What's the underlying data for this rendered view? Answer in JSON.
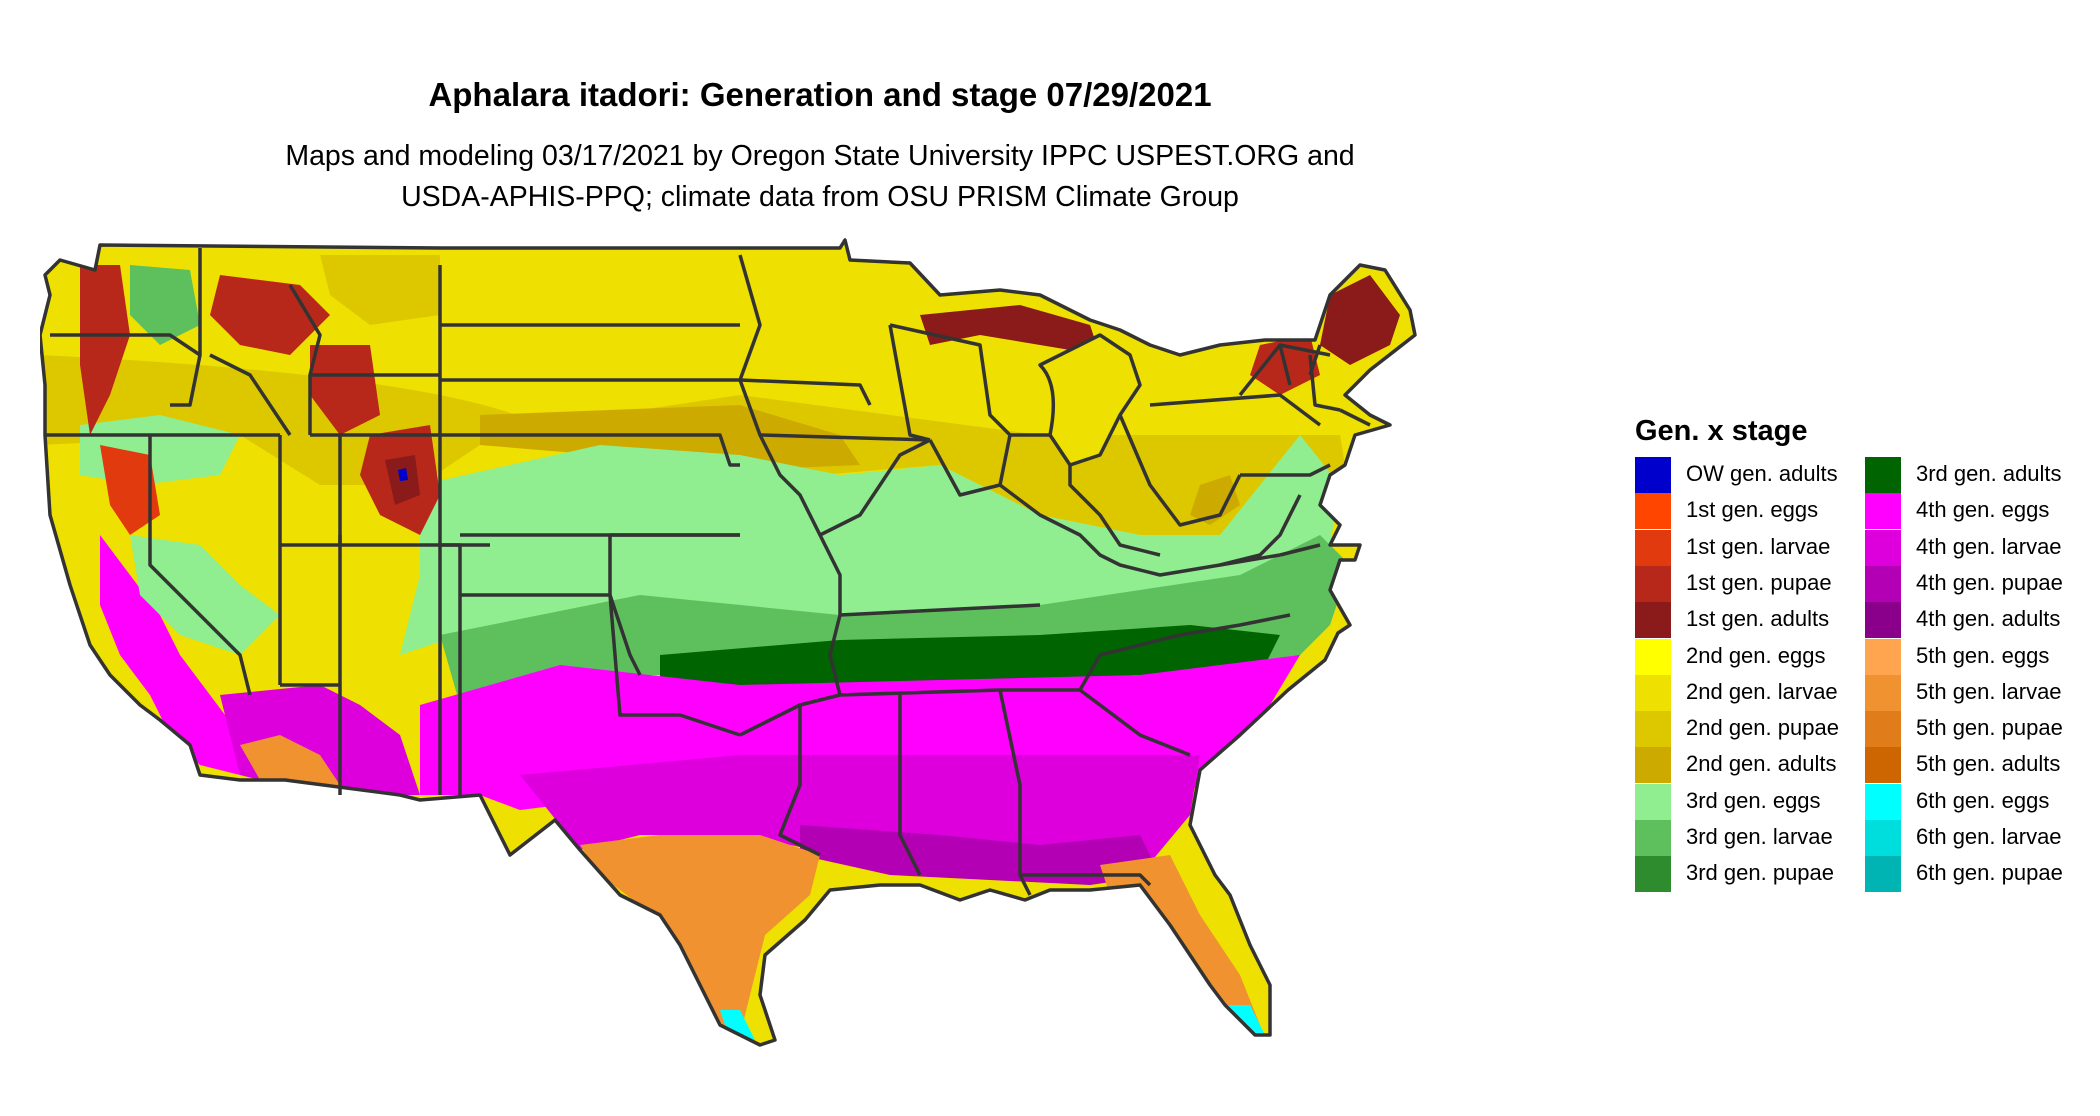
{
  "title": "Aphalara itadori: Generation and stage 07/29/2021",
  "subtitle": [
    "Maps and modeling 03/17/2021 by Oregon State University IPPC USPEST.ORG and",
    "USDA-APHIS-PPQ; climate data from OSU PRISM Climate Group"
  ],
  "legend": {
    "title": "Gen. x stage",
    "items": [
      {
        "label": "OW gen. adults",
        "color": "#0000CD"
      },
      {
        "label": "1st gen. eggs",
        "color": "#FF4500"
      },
      {
        "label": "1st gen. larvae",
        "color": "#E03A0E"
      },
      {
        "label": "1st gen. pupae",
        "color": "#B8281A"
      },
      {
        "label": "1st gen. adults",
        "color": "#8B1A1A"
      },
      {
        "label": "2nd gen. eggs",
        "color": "#FFFF00"
      },
      {
        "label": "2nd gen. larvae",
        "color": "#EEE000"
      },
      {
        "label": "2nd gen. pupae",
        "color": "#DDC800"
      },
      {
        "label": "2nd gen. adults",
        "color": "#CDAA00"
      },
      {
        "label": "3rd gen. eggs",
        "color": "#90EE90"
      },
      {
        "label": "3rd gen. larvae",
        "color": "#5DC05D"
      },
      {
        "label": "3rd gen. pupae",
        "color": "#2E8B2E"
      },
      {
        "label": "3rd gen. adults",
        "color": "#006400"
      },
      {
        "label": "4th gen. eggs",
        "color": "#FF00FF"
      },
      {
        "label": "4th gen. larvae",
        "color": "#DD00DD"
      },
      {
        "label": "4th gen. pupae",
        "color": "#B400B4"
      },
      {
        "label": "4th gen. adults",
        "color": "#8B008B"
      },
      {
        "label": "5th gen. eggs",
        "color": "#FFA54F"
      },
      {
        "label": "5th gen. larvae",
        "color": "#F0922F"
      },
      {
        "label": "5th gen. pupae",
        "color": "#E07D1A"
      },
      {
        "label": "5th gen. adults",
        "color": "#CD6600"
      },
      {
        "label": "6th gen. eggs",
        "color": "#00FFFF"
      },
      {
        "label": "6th gen. larvae",
        "color": "#00DDDD"
      },
      {
        "label": "6th gen. pupae",
        "color": "#00B4B4"
      }
    ]
  },
  "map": {
    "region": "Contiguous United States",
    "border_color": "#333333",
    "zones": [
      {
        "stage": "1st gen. adults",
        "area": "northern Maine, Upper Peninsula of Michigan, Rocky Mountain peaks"
      },
      {
        "stage": "1st gen. pupae",
        "area": "Rocky Mountains, Cascades, Sierra Nevada"
      },
      {
        "stage": "2nd gen. larvae",
        "area": "northern Great Plains, Great Lakes, Northeast, Pacific Northwest"
      },
      {
        "stage": "2nd gen. pupae",
        "area": "central Plains, Ohio Valley"
      },
      {
        "stage": "3rd gen. eggs",
        "area": "Missouri, Kentucky, Virginia, Kansas"
      },
      {
        "stage": "3rd gen. larvae",
        "area": "Oklahoma, Arkansas, Tennessee, Carolinas"
      },
      {
        "stage": "3rd gen. adults",
        "area": "southern Tennessee, northern Mississippi and Alabama"
      },
      {
        "stage": "4th gen. eggs",
        "area": "Texas, Gulf states, California Central Valley"
      },
      {
        "stage": "4th gen. larvae",
        "area": "Gulf Coast states, Georgia"
      },
      {
        "stage": "5th gen. larvae",
        "area": "southern Texas, Florida peninsula, southern Arizona"
      },
      {
        "stage": "6th gen. eggs",
        "area": "southern tip of Florida and Texas"
      }
    ]
  }
}
